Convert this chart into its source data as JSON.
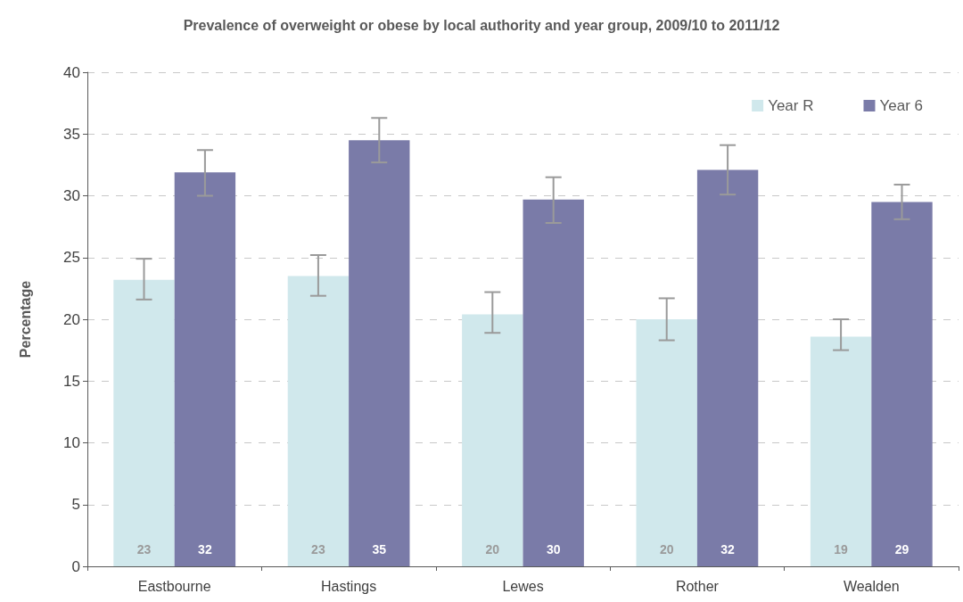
{
  "chart_data": {
    "type": "bar",
    "title": "Prevalence of overweight or obese by local authority and year group, 2009/10 to 2011/12",
    "ylabel": "Percentage",
    "categories": [
      "Eastbourne",
      "Hastings",
      "Lewes",
      "Rother",
      "Wealden"
    ],
    "series": [
      {
        "name": "Year R",
        "color": "#d0e8ec",
        "values": [
          23.2,
          23.5,
          20.4,
          20.0,
          18.6
        ],
        "errors": [
          [
            21.6,
            24.9
          ],
          [
            21.9,
            25.2
          ],
          [
            18.9,
            22.2
          ],
          [
            18.3,
            21.7
          ],
          [
            17.5,
            20.0
          ]
        ],
        "value_labels": [
          "23",
          "23",
          "20",
          "20",
          "19"
        ]
      },
      {
        "name": "Year 6",
        "color": "#7a7ba8",
        "values": [
          31.9,
          34.5,
          29.7,
          32.1,
          29.5
        ],
        "errors": [
          [
            30.0,
            33.7
          ],
          [
            32.7,
            36.3
          ],
          [
            27.8,
            31.5
          ],
          [
            30.1,
            34.1
          ],
          [
            28.1,
            30.9
          ]
        ],
        "value_labels": [
          "32",
          "35",
          "30",
          "32",
          "29"
        ]
      }
    ],
    "ylim": [
      0,
      40
    ],
    "yticks": [
      0,
      5,
      10,
      15,
      20,
      25,
      30,
      35,
      40
    ],
    "grid": "y",
    "legend": "top right"
  }
}
